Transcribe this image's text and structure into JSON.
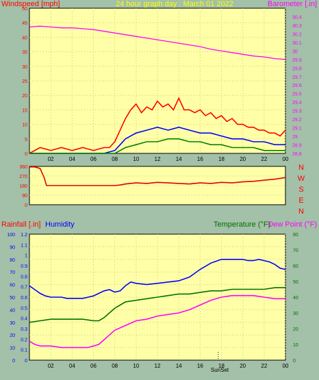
{
  "colors": {
    "background": "#a3c0a8",
    "plot": "#ffffa8",
    "wind": "#ff0000",
    "gust": "#ff0000",
    "avg": "#0000ff",
    "lull": "#008000",
    "barometer": "#ff00ff",
    "direction": "#e00000",
    "rain": "#0000c0",
    "humidity": "#0000ff",
    "temperature": "#007000",
    "dewpoint": "#ff00ff",
    "red_label": "#ff0000",
    "green_label": "#007000",
    "magenta_label": "#ff00ff",
    "blue_label": "#0000ff",
    "title": "#ffff00"
  },
  "header": {
    "wind_label": "Windspeed [mph]",
    "title": "24 hour graph day : March 01 2022",
    "baro_label": "Barometer [.in]"
  },
  "bottom_header": {
    "rain_label": "Rainfall [.in]",
    "humidity_label": "Humidity",
    "temp_label": "Temperature (°F)",
    "dew_label": "Dew Point (°F)"
  },
  "compass": [
    "N",
    "W",
    "S",
    "E",
    "N"
  ],
  "sun_label": "SunSet",
  "chart_data": [
    {
      "type": "line",
      "title": "24 hour graph day : March 01 2022",
      "x_ticks": [
        "02",
        "04",
        "06",
        "08",
        "10",
        "12",
        "14",
        "16",
        "18",
        "20",
        "22",
        "00"
      ],
      "x_range_hours": [
        0,
        24
      ],
      "y_left": {
        "label": "Windspeed [mph]",
        "range": [
          0,
          50
        ],
        "ticks": [
          "0",
          "5",
          "10",
          "15",
          "20",
          "25",
          "30",
          "35",
          "40",
          "45",
          "50"
        ]
      },
      "y_right": {
        "label": "Barometer [.in]",
        "range": [
          28.8,
          30.5
        ],
        "ticks": [
          "28.8",
          "28.9",
          "29",
          "29.1",
          "29.2",
          "29.3",
          "29.4",
          "29.5",
          "29.6",
          "29.7",
          "29.8",
          "29.9",
          "30",
          "30.1",
          "30.2",
          "30.3",
          "30.4"
        ]
      },
      "series": [
        {
          "name": "Gust",
          "axis": "left",
          "color": "#ff0000",
          "x": [
            0,
            1,
            2,
            3,
            4,
            5,
            6,
            7,
            7.5,
            8,
            8.5,
            9,
            9.5,
            10,
            10.5,
            11,
            11.5,
            12,
            12.5,
            13,
            13.5,
            14,
            14.5,
            15,
            15.5,
            16,
            16.5,
            17,
            17.5,
            18,
            18.5,
            19,
            19.5,
            20,
            20.5,
            21,
            21.5,
            22,
            22.5,
            23,
            23.5,
            24
          ],
          "y": [
            0,
            2,
            1,
            2,
            1,
            2,
            1,
            2,
            2,
            4,
            8,
            12,
            15,
            17,
            14,
            16,
            15,
            18,
            16,
            17,
            15,
            19,
            15,
            15,
            14,
            15,
            13,
            14,
            12,
            13,
            11,
            12,
            10,
            10,
            9,
            9,
            8,
            8,
            7,
            7,
            6,
            8
          ]
        },
        {
          "name": "Average",
          "axis": "left",
          "color": "#0000ff",
          "x": [
            0,
            7,
            8,
            8.5,
            9,
            9.5,
            10,
            11,
            12,
            13,
            14,
            15,
            16,
            17,
            18,
            19,
            20,
            21,
            22,
            23,
            24
          ],
          "y": [
            0,
            0,
            1,
            3,
            5,
            6,
            7,
            8,
            9,
            8,
            9,
            8,
            7,
            7,
            6,
            5,
            5,
            4,
            4,
            3,
            3
          ]
        },
        {
          "name": "Lull",
          "axis": "left",
          "color": "#008000",
          "x": [
            0,
            8,
            8.5,
            9,
            10,
            11,
            12,
            13,
            14,
            15,
            16,
            17,
            18,
            19,
            20,
            21,
            22,
            23,
            24
          ],
          "y": [
            0,
            0,
            1,
            2,
            3,
            4,
            4,
            5,
            5,
            4,
            4,
            3,
            3,
            2,
            2,
            2,
            1,
            1,
            1
          ]
        },
        {
          "name": "Barometer",
          "axis": "right",
          "color": "#ff00ff",
          "x": [
            0,
            1,
            2,
            3,
            4,
            5,
            6,
            7,
            8,
            9,
            10,
            11,
            12,
            13,
            14,
            15,
            16,
            17,
            18,
            19,
            20,
            21,
            22,
            23,
            24
          ],
          "y": [
            30.28,
            30.29,
            30.28,
            30.27,
            30.27,
            30.26,
            30.25,
            30.23,
            30.21,
            30.19,
            30.17,
            30.15,
            30.13,
            30.11,
            30.09,
            30.07,
            30.05,
            30.02,
            30.0,
            29.98,
            29.96,
            29.94,
            29.93,
            29.91,
            29.9
          ]
        }
      ]
    },
    {
      "type": "line",
      "title": "",
      "x_range_hours": [
        0,
        24
      ],
      "y_left": {
        "range": [
          0,
          360
        ],
        "ticks": [
          "0",
          "90",
          "180",
          "270",
          "360"
        ]
      },
      "series": [
        {
          "name": "",
          "color": "#e00000",
          "x": [
            0,
            0.5,
            1,
            1.4,
            1.6,
            2,
            3,
            4,
            5,
            6,
            7,
            8,
            8.5,
            9,
            10,
            11,
            12,
            13,
            14,
            15,
            16,
            17,
            18,
            19,
            20,
            21,
            22,
            23,
            24
          ],
          "y": [
            355,
            355,
            340,
            250,
            180,
            180,
            180,
            180,
            180,
            180,
            180,
            180,
            185,
            195,
            205,
            200,
            210,
            205,
            200,
            195,
            205,
            200,
            210,
            205,
            215,
            220,
            230,
            240,
            255
          ]
        }
      ]
    },
    {
      "type": "line",
      "title": "",
      "x_ticks": [
        "02",
        "04",
        "06",
        "08",
        "10",
        "12",
        "14",
        "16",
        "18",
        "20",
        "22",
        "00"
      ],
      "x_range_hours": [
        0,
        24
      ],
      "y_left_rain": {
        "label": "Rainfall [.in]",
        "range": [
          0,
          1.2
        ],
        "ticks": [
          "0",
          "0.1",
          "0.2",
          "0.3",
          "0.4",
          "0.5",
          "0.6",
          "0.7",
          "0.8",
          "0.9",
          "1",
          "1.1",
          "1.2"
        ]
      },
      "y_left_humidity": {
        "label": "Humidity",
        "range": [
          0,
          100
        ],
        "ticks": [
          "0",
          "10",
          "20",
          "30",
          "40",
          "50",
          "60",
          "70",
          "80",
          "90",
          "100"
        ]
      },
      "y_right": {
        "label": "Temperature (°F)",
        "range": [
          0,
          80
        ],
        "ticks": [
          "0",
          "10",
          "20",
          "30",
          "40",
          "50",
          "60",
          "70",
          "80"
        ]
      },
      "series": [
        {
          "name": "Humidity",
          "axis": "humidity",
          "color": "#0000ff",
          "x": [
            0,
            0.5,
            1,
            1.5,
            2,
            2.5,
            3,
            3.5,
            4,
            4.5,
            5,
            5.5,
            6,
            6.5,
            7,
            7.5,
            8,
            8.5,
            9,
            9.5,
            10,
            11,
            12,
            13,
            14,
            15,
            16,
            17,
            18,
            19,
            20,
            20.5,
            21,
            21.5,
            22,
            22.5,
            23,
            23.5,
            24
          ],
          "y": [
            59,
            56,
            53,
            51,
            50,
            50,
            50,
            49,
            49,
            49,
            49,
            50,
            51,
            53,
            55,
            56,
            54,
            55,
            59,
            62,
            61,
            60,
            61,
            62,
            63,
            66,
            72,
            77,
            80,
            80,
            80,
            79,
            79,
            80,
            79,
            78,
            76,
            73,
            72
          ]
        },
        {
          "name": "Temperature",
          "axis": "right",
          "color": "#007000",
          "x": [
            0,
            1,
            2,
            3,
            4,
            5,
            6,
            6.5,
            7,
            7.5,
            8,
            8.5,
            9,
            10,
            11,
            12,
            13,
            14,
            15,
            16,
            17,
            18,
            19,
            20,
            21,
            22,
            23,
            24
          ],
          "y": [
            24,
            25,
            26,
            26,
            26,
            26,
            25,
            25,
            27,
            30,
            33,
            35,
            37,
            38,
            39,
            40,
            41,
            42,
            42,
            43,
            44,
            44,
            45,
            45,
            45,
            45,
            46,
            46
          ]
        },
        {
          "name": "Dew Point",
          "axis": "right",
          "color": "#ff00ff",
          "x": [
            0,
            0.5,
            1,
            2,
            3,
            4,
            5,
            5.5,
            6,
            6.5,
            7,
            7.5,
            8,
            9,
            10,
            11,
            12,
            13,
            14,
            15,
            16,
            17,
            18,
            19,
            20,
            21,
            22,
            23,
            24
          ],
          "y": [
            12,
            10,
            9,
            9,
            8,
            8,
            8,
            8,
            9,
            10,
            13,
            16,
            19,
            22,
            25,
            26,
            28,
            29,
            30,
            32,
            35,
            38,
            40,
            41,
            41,
            41,
            40,
            39,
            39
          ]
        }
      ]
    }
  ]
}
